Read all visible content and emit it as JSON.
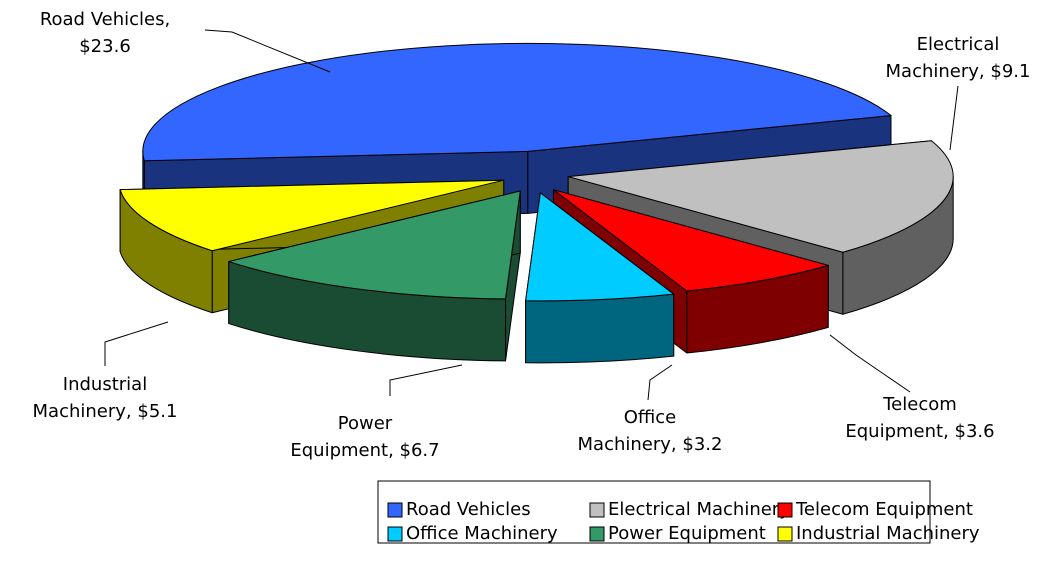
{
  "chart_data": {
    "type": "pie3d",
    "categories": [
      "Road Vehicles",
      "Electrical Machinery",
      "Telecom Equipment",
      "Office Machinery",
      "Power Equipment",
      "Industrial Machinery"
    ],
    "values": [
      23.6,
      9.1,
      3.6,
      3.2,
      6.7,
      5.1
    ],
    "value_labels": [
      "Road Vehicles, $23.6",
      "Electrical Machinery, $9.1",
      "Telecom Equipment, $3.6",
      "Office Machinery, $3.2",
      "Power Equipment, $6.7",
      "Industrial Machinery, $5.1"
    ],
    "colors": [
      "#3366ff",
      "#c0c0c0",
      "#ff0000",
      "#00ccff",
      "#339966",
      "#ffff00"
    ],
    "legend": "bottom"
  }
}
